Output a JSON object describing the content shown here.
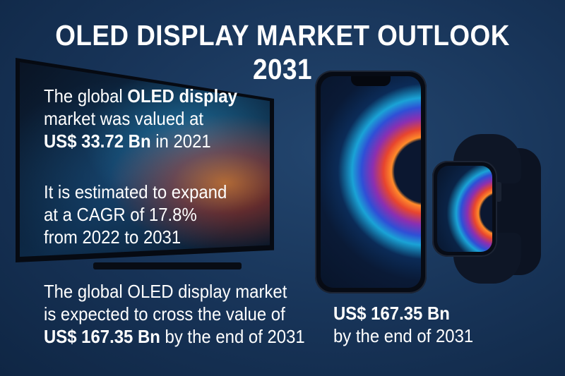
{
  "title": "OLED DISPLAY MARKET OUTLOOK 2031",
  "block1": {
    "l1a": "The global ",
    "l1b": "OLED display",
    "l2": "market was valued at",
    "l3a": "US$ 33.72 Bn",
    "l3b": " in 2021"
  },
  "block2": {
    "l1": "It is estimated to expand",
    "l2": "at a CAGR of 17.8%",
    "l3": "from 2022 to 2031"
  },
  "block3": {
    "l1": "The global OLED display market",
    "l2": "is expected to cross the value of",
    "l3a": "US$ 167.35 Bn",
    "l3b": " by the end of 2031"
  },
  "block4": {
    "l1": "US$ 167.35 Bn",
    "l2": "by the end of 2031"
  }
}
